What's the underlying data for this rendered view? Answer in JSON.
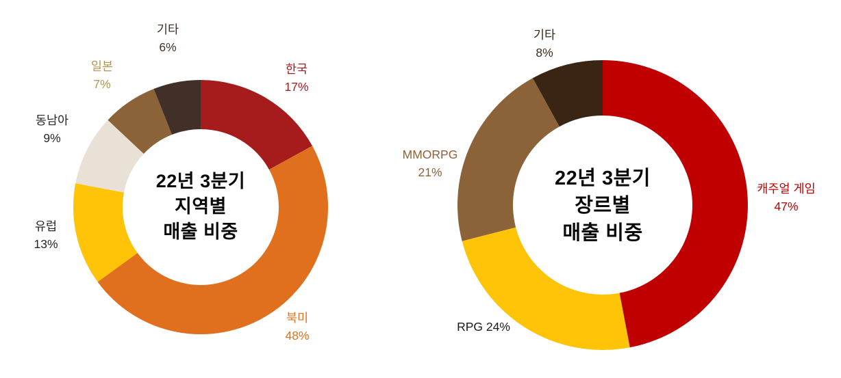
{
  "page": {
    "background": "#FFFFFF"
  },
  "chart_data": [
    {
      "type": "pie",
      "subtype": "donut",
      "title": "22년 3분기 지역별 매출 비중",
      "title_lines": [
        "22년 3분기",
        "지역별",
        "매출 비중"
      ],
      "unit": "%",
      "categories": [
        "한국",
        "북미",
        "유럽",
        "동남아",
        "일본",
        "기타"
      ],
      "values": [
        17,
        48,
        13,
        9,
        7,
        6
      ],
      "colors": [
        "#A61C1C",
        "#E0701E",
        "#FFC408",
        "#E9E1D6",
        "#8C6239",
        "#413028"
      ],
      "start_angle_deg": 0,
      "direction": "clockwise",
      "legend_position": "around",
      "labels": [
        {
          "lines": [
            "한국",
            "17%"
          ],
          "color": "#A61C1C"
        },
        {
          "lines": [
            "북미",
            "48%"
          ],
          "color": "#E0701E"
        },
        {
          "lines": [
            "유럽",
            "13%"
          ],
          "color": "#262626"
        },
        {
          "lines": [
            "동남아",
            "9%"
          ],
          "color": "#262626"
        },
        {
          "lines": [
            "일본",
            "7%"
          ],
          "color": "#B5954F"
        },
        {
          "lines": [
            "기타",
            "6%"
          ],
          "color": "#413028"
        }
      ]
    },
    {
      "type": "pie",
      "subtype": "donut",
      "title": "22년 3분기 장르별 매출 비중",
      "title_lines": [
        "22년 3분기",
        "장르별",
        "매출 비중"
      ],
      "unit": "%",
      "categories": [
        "캐주얼 게임",
        "RPG",
        "MMORPG",
        "기타"
      ],
      "values": [
        47,
        24,
        21,
        8
      ],
      "colors": [
        "#C00000",
        "#FFC408",
        "#8C6239",
        "#3A2414"
      ],
      "start_angle_deg": 0,
      "direction": "clockwise",
      "legend_position": "around",
      "labels": [
        {
          "lines": [
            "캐주얼 게임",
            "47%"
          ],
          "color": "#C00000"
        },
        {
          "lines": [
            "RPG 24%"
          ],
          "color": "#1A1A1A"
        },
        {
          "lines": [
            "MMORPG",
            "21%"
          ],
          "color": "#8C6239"
        },
        {
          "lines": [
            "기타",
            "8%"
          ],
          "color": "#3A2B1E"
        }
      ]
    }
  ]
}
